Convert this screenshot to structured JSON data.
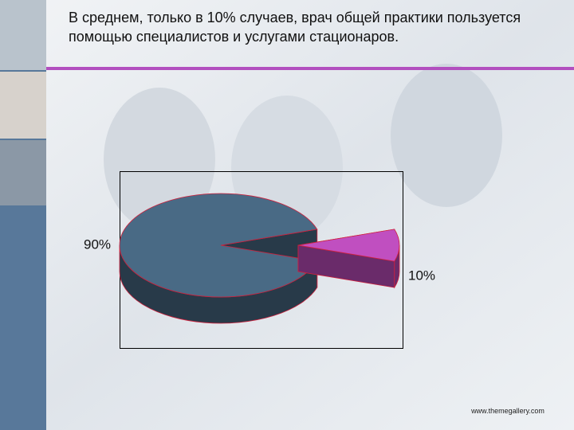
{
  "chart_data": {
    "type": "pie",
    "title": "В среднем, только в 10% случаев, врач общей практики пользуется помощью специалистов и услугами стационаров.",
    "values": [
      90,
      10
    ],
    "value_labels": [
      "90%",
      "10%"
    ],
    "colors": [
      "#496a85",
      "#c04fc0"
    ]
  },
  "footer": "www.themegallery.com"
}
